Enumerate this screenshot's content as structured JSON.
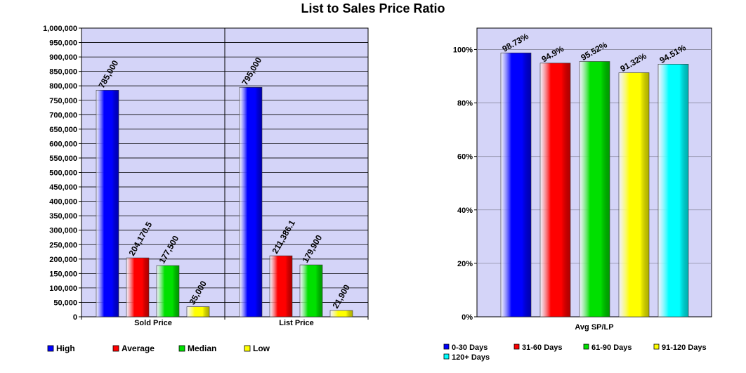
{
  "title": "List to Sales Price Ratio",
  "chart_data": [
    {
      "type": "bar",
      "categories": [
        "Sold Price",
        "List Price"
      ],
      "series": [
        {
          "name": "High",
          "color": "#0000ff",
          "values": [
            785000,
            795000
          ],
          "labels": [
            "785,000",
            "795,000"
          ]
        },
        {
          "name": "Average",
          "color": "#ff0000",
          "values": [
            204170.5,
            211386.1
          ],
          "labels": [
            "204,170.5",
            "211,386.1"
          ]
        },
        {
          "name": "Median",
          "color": "#00e000",
          "values": [
            177500,
            179900
          ],
          "labels": [
            "177,500",
            "179,900"
          ]
        },
        {
          "name": "Low",
          "color": "#ffff00",
          "values": [
            35000,
            21900
          ],
          "labels": [
            "35,000",
            "21,900"
          ]
        }
      ],
      "ylim": [
        0,
        1000000
      ],
      "y_ticks": [
        "0",
        "50,000",
        "100,000",
        "150,000",
        "200,000",
        "250,000",
        "300,000",
        "350,000",
        "400,000",
        "450,000",
        "500,000",
        "550,000",
        "600,000",
        "650,000",
        "700,000",
        "750,000",
        "800,000",
        "850,000",
        "900,000",
        "950,000",
        "1,000,000"
      ],
      "grid": true,
      "plot_background": "#d4d4f8",
      "legend_position": "bottom"
    },
    {
      "type": "bar",
      "categories": [
        "Avg SP/LP"
      ],
      "series": [
        {
          "name": "0-30 Days",
          "color": "#0000ff",
          "value": 98.73,
          "label": "98.73%"
        },
        {
          "name": "31-60 Days",
          "color": "#ff0000",
          "value": 94.9,
          "label": "94.9%"
        },
        {
          "name": "61-90 Days",
          "color": "#00e000",
          "value": 95.52,
          "label": "95.52%"
        },
        {
          "name": "91-120 Days",
          "color": "#ffff00",
          "value": 91.32,
          "label": "91.32%"
        },
        {
          "name": "120+ Days",
          "color": "#00ffff",
          "value": 94.51,
          "label": "94.51%"
        }
      ],
      "ylim": [
        0,
        108
      ],
      "y_ticks": [
        "0%",
        "20%",
        "40%",
        "60%",
        "80%",
        "100%"
      ],
      "grid": true,
      "plot_background": "#d4d4f8",
      "legend_position": "bottom"
    }
  ]
}
